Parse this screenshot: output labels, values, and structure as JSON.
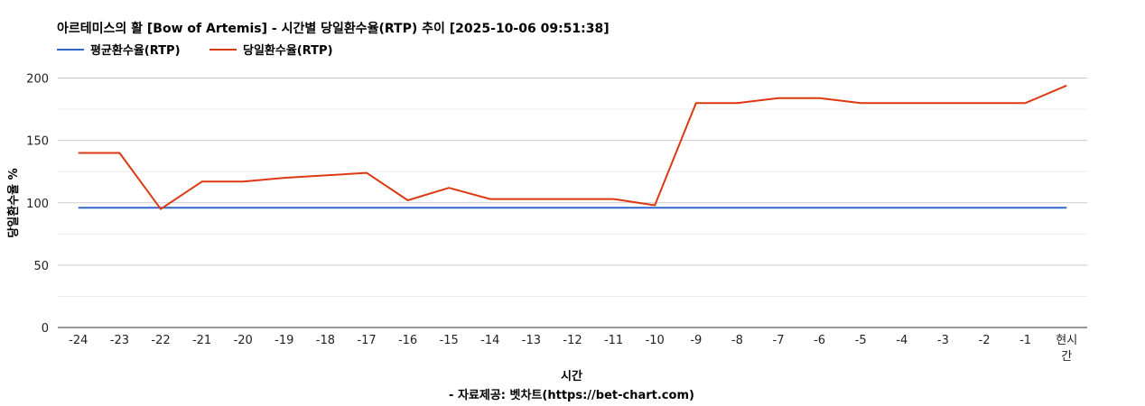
{
  "chart_data": {
    "type": "line",
    "title": "아르테미스의 활 [Bow of Artemis] - 시간별 당일환수율(RTP) 추이 [2025-10-06 09:51:38]",
    "xlabel": "시간",
    "ylabel": "당일환수율 %",
    "source": "- 자료제공: 벳차트(https://bet-chart.com)",
    "categories": [
      "-24",
      "-23",
      "-22",
      "-21",
      "-20",
      "-19",
      "-18",
      "-17",
      "-16",
      "-15",
      "-14",
      "-13",
      "-12",
      "-11",
      "-10",
      "-9",
      "-8",
      "-7",
      "-6",
      "-5",
      "-4",
      "-3",
      "-2",
      "-1",
      "현시간"
    ],
    "series": [
      {
        "name": "평균환수율(RTP)",
        "color": "#3366cc",
        "values": [
          96,
          96,
          96,
          96,
          96,
          96,
          96,
          96,
          96,
          96,
          96,
          96,
          96,
          96,
          96,
          96,
          96,
          96,
          96,
          96,
          96,
          96,
          96,
          96,
          96
        ]
      },
      {
        "name": "당일환수율(RTP)",
        "color": "#dc3912",
        "values": [
          140,
          140,
          95,
          117,
          117,
          120,
          122,
          124,
          102,
          112,
          103,
          103,
          103,
          103,
          98,
          180,
          180,
          184,
          184,
          180,
          180,
          180,
          180,
          180,
          194
        ]
      }
    ],
    "yticks": [
      "0",
      "50",
      "100",
      "150",
      "200"
    ],
    "ylim": [
      0,
      225
    ],
    "grid": true,
    "legend_position": "top-left"
  }
}
